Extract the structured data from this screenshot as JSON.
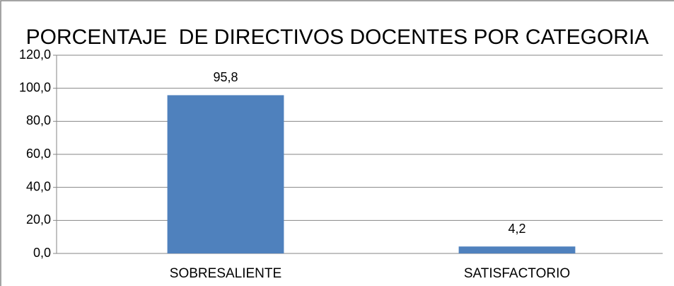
{
  "chart_data": {
    "type": "bar",
    "title": "PORCENTAJE  DE DIRECTIVOS DOCENTES POR CATEGORIA",
    "categories": [
      "SOBRESALIENTE",
      "SATISFACTORIO"
    ],
    "values": [
      95.8,
      4.2
    ],
    "value_labels": [
      "95,8",
      "4,2"
    ],
    "color": "#4f81bd",
    "ylim": [
      0,
      120
    ],
    "yticks": [
      {
        "value": 0,
        "label": "0,0"
      },
      {
        "value": 20,
        "label": "20,0"
      },
      {
        "value": 40,
        "label": "40,0"
      },
      {
        "value": 60,
        "label": "60,0"
      },
      {
        "value": 80,
        "label": "80,0"
      },
      {
        "value": 100,
        "label": "100,0"
      },
      {
        "value": 120,
        "label": "120,0"
      }
    ],
    "grid": true
  }
}
